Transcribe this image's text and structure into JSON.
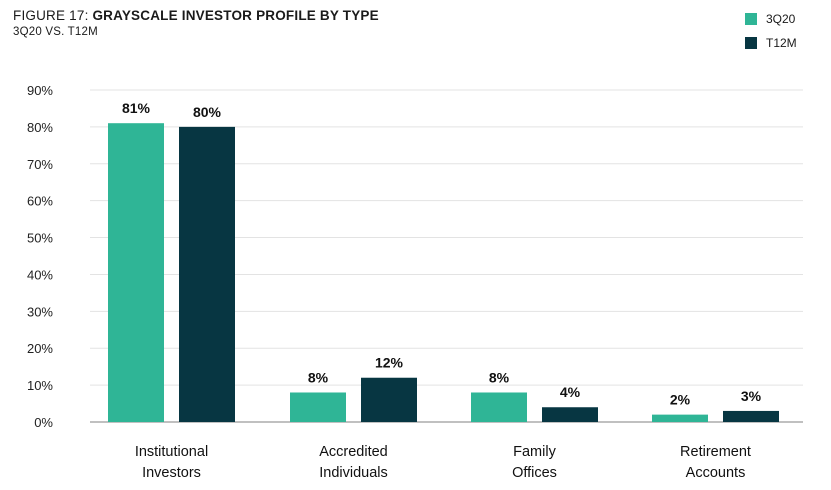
{
  "header": {
    "figure_label": "FIGURE 17:",
    "title": "GRAYSCALE INVESTOR PROFILE BY TYPE",
    "subtitle": "3Q20 VS. T12M"
  },
  "colors": {
    "series_3q20": "#2fb596",
    "series_t12m": "#073642",
    "grid": "#e3e3e3",
    "axis": "#9a9a9a"
  },
  "chart_data": {
    "type": "bar",
    "title": "GRAYSCALE INVESTOR PROFILE BY TYPE",
    "subtitle": "3Q20 VS. T12M",
    "categories": [
      [
        "Institutional",
        "Investors"
      ],
      [
        "Accredited",
        "Individuals"
      ],
      [
        "Family",
        "Offices"
      ],
      [
        "Retirement",
        "Accounts"
      ]
    ],
    "series": [
      {
        "name": "3Q20",
        "values": [
          81,
          8,
          8,
          2
        ],
        "labels": [
          "81%",
          "8%",
          "8%",
          "2%"
        ]
      },
      {
        "name": "T12M",
        "values": [
          80,
          12,
          4,
          3
        ],
        "labels": [
          "80%",
          "12%",
          "4%",
          "3%"
        ]
      }
    ],
    "ylim": [
      0,
      90
    ],
    "yticks": [
      0,
      10,
      20,
      30,
      40,
      50,
      60,
      70,
      80,
      90
    ],
    "ytick_labels": [
      "0%",
      "10%",
      "20%",
      "30%",
      "40%",
      "50%",
      "60%",
      "70%",
      "80%",
      "90%"
    ],
    "xlabel": "",
    "ylabel": "",
    "grid": true,
    "legend_position": "top-right"
  }
}
